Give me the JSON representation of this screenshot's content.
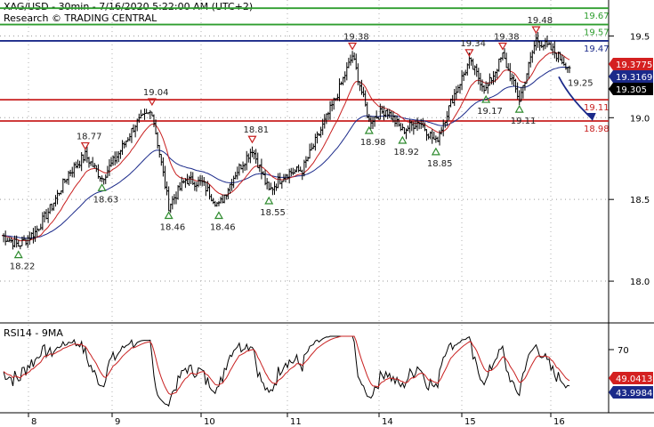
{
  "header": {
    "title": "XAG/USD - 30min - 7/16/2020 5:22:00 AM (UTC+2)",
    "source": "Research © TRADING CENTRAL"
  },
  "rsi": {
    "title": "RSI14 - 9MA",
    "level_tick": "70",
    "current_rsi": "43.9984",
    "current_ma": "49.0413"
  },
  "chart_data": {
    "type": "line",
    "title": "XAG/USD - 30min - 7/16/2020 5:22:00 AM (UTC+2)",
    "x_ticks": [
      "8",
      "9",
      "10",
      "11",
      "14",
      "15",
      "16"
    ],
    "y_ticks": [
      "19.5",
      "19.0",
      "18.5",
      "18.0"
    ],
    "ylim": [
      17.75,
      19.72
    ],
    "price_series": [
      {
        "x": 0,
        "y": 18.28
      },
      {
        "x": 1,
        "y": 18.22
      },
      {
        "x": 2,
        "y": 18.3
      },
      {
        "x": 3,
        "y": 18.46
      },
      {
        "x": 4,
        "y": 18.66
      },
      {
        "x": 5,
        "y": 18.77
      },
      {
        "x": 6,
        "y": 18.63
      },
      {
        "x": 7,
        "y": 18.78
      },
      {
        "x": 8,
        "y": 18.96
      },
      {
        "x": 9,
        "y": 19.04
      },
      {
        "x": 10,
        "y": 18.46
      },
      {
        "x": 11,
        "y": 18.62
      },
      {
        "x": 12,
        "y": 18.6
      },
      {
        "x": 13,
        "y": 18.46
      },
      {
        "x": 14,
        "y": 18.66
      },
      {
        "x": 15,
        "y": 18.81
      },
      {
        "x": 16,
        "y": 18.55
      },
      {
        "x": 17,
        "y": 18.66
      },
      {
        "x": 18,
        "y": 18.68
      },
      {
        "x": 19,
        "y": 18.9
      },
      {
        "x": 20,
        "y": 19.12
      },
      {
        "x": 21,
        "y": 19.38
      },
      {
        "x": 22,
        "y": 18.98
      },
      {
        "x": 23,
        "y": 19.05
      },
      {
        "x": 24,
        "y": 18.92
      },
      {
        "x": 25,
        "y": 18.98
      },
      {
        "x": 26,
        "y": 18.85
      },
      {
        "x": 27,
        "y": 19.12
      },
      {
        "x": 28,
        "y": 19.34
      },
      {
        "x": 29,
        "y": 19.17
      },
      {
        "x": 30,
        "y": 19.38
      },
      {
        "x": 31,
        "y": 19.11
      },
      {
        "x": 32,
        "y": 19.48
      },
      {
        "x": 33,
        "y": 19.41
      },
      {
        "x": 34,
        "y": 19.305
      }
    ],
    "forecast_path": [
      {
        "x": 34,
        "y": 19.305
      },
      {
        "x": 35,
        "y": 18.98
      }
    ],
    "levels": [
      {
        "value": 19.67,
        "label": "19.67",
        "color": "#2e9e2e"
      },
      {
        "value": 19.57,
        "label": "19.57",
        "color": "#2e9e2e"
      },
      {
        "value": 19.47,
        "label": "19.47",
        "color": "#1b2a8a"
      },
      {
        "value": 19.11,
        "label": "19.11",
        "color": "#c82020"
      },
      {
        "value": 18.98,
        "label": "18.98",
        "color": "#c82020"
      }
    ],
    "annotations": [
      {
        "label": "18.22",
        "x": 1,
        "y": 18.22,
        "type": "low"
      },
      {
        "label": "18.77",
        "x": 5,
        "y": 18.77,
        "type": "high"
      },
      {
        "label": "18.63",
        "x": 6,
        "y": 18.63,
        "type": "low"
      },
      {
        "label": "19.04",
        "x": 9,
        "y": 19.04,
        "type": "high"
      },
      {
        "label": "18.46",
        "x": 10,
        "y": 18.46,
        "type": "low"
      },
      {
        "label": "18.46",
        "x": 13,
        "y": 18.46,
        "type": "low"
      },
      {
        "label": "18.81",
        "x": 15,
        "y": 18.81,
        "type": "high"
      },
      {
        "label": "18.55",
        "x": 16,
        "y": 18.55,
        "type": "low"
      },
      {
        "label": "19.38",
        "x": 21,
        "y": 19.38,
        "type": "high"
      },
      {
        "label": "18.98",
        "x": 22,
        "y": 18.98,
        "type": "low"
      },
      {
        "label": "18.92",
        "x": 24,
        "y": 18.92,
        "type": "low"
      },
      {
        "label": "18.85",
        "x": 26,
        "y": 18.85,
        "type": "low"
      },
      {
        "label": "19.34",
        "x": 28,
        "y": 19.34,
        "type": "high"
      },
      {
        "label": "19.17",
        "x": 29,
        "y": 19.17,
        "type": "low"
      },
      {
        "label": "19.38",
        "x": 30,
        "y": 19.38,
        "type": "high"
      },
      {
        "label": "19.11",
        "x": 31,
        "y": 19.11,
        "type": "low"
      },
      {
        "label": "19.48",
        "x": 32,
        "y": 19.48,
        "type": "high"
      },
      {
        "label": "19.25",
        "x": 34,
        "y": 19.25,
        "type": "target"
      }
    ],
    "price_boxes": [
      {
        "label": "19.3775",
        "value": 19.3775,
        "bg": "#d42020",
        "fg": "#ffffff"
      },
      {
        "label": "19.3169",
        "value": 19.3169,
        "bg": "#1b2a8a",
        "fg": "#ffffff"
      },
      {
        "label": "19.305",
        "value": 19.305,
        "bg": "#000000",
        "fg": "#ffffff"
      }
    ],
    "colors": {
      "price": "#000000",
      "ma_fast": "#c82020",
      "ma_slow": "#1b2a8a",
      "forecast": "#1b2a8a",
      "rsi": "#000000",
      "rsi_ma": "#c82020"
    }
  }
}
